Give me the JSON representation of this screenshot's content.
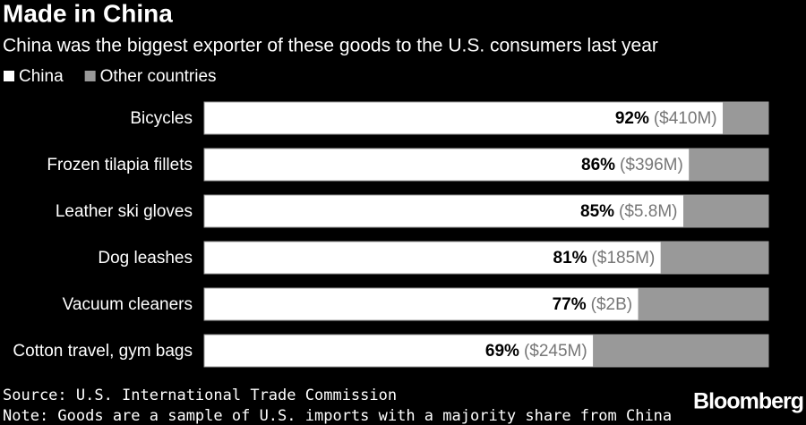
{
  "chart_data": {
    "type": "stacked_bar_horizontal",
    "title": "Made in China",
    "subtitle": "China was the biggest exporter of these goods to the U.S. consumers last year",
    "categories": [
      "Bicycles",
      "Frozen tilapia fillets",
      "Leather ski gloves",
      "Dog leashes",
      "Vacuum cleaners",
      "Cotton travel, gym bags"
    ],
    "series": [
      {
        "name": "China",
        "color": "#ffffff",
        "values": [
          92,
          86,
          85,
          81,
          77,
          69
        ],
        "value_labels": [
          "92%",
          "86%",
          "85%",
          "81%",
          "77%",
          "69%"
        ],
        "amount_labels": [
          "($410M)",
          "($396M)",
          "($5.8M)",
          "($185M)",
          "($2B)",
          "($245M)"
        ]
      },
      {
        "name": "Other countries",
        "color": "#999999",
        "values": [
          8,
          14,
          15,
          19,
          23,
          31
        ]
      }
    ],
    "xlim": [
      0,
      100
    ],
    "source": "Source: U.S. International Trade Commission",
    "note": "Note: Goods are a sample of U.S. imports with a majority share from China",
    "brand": "Bloomberg"
  }
}
